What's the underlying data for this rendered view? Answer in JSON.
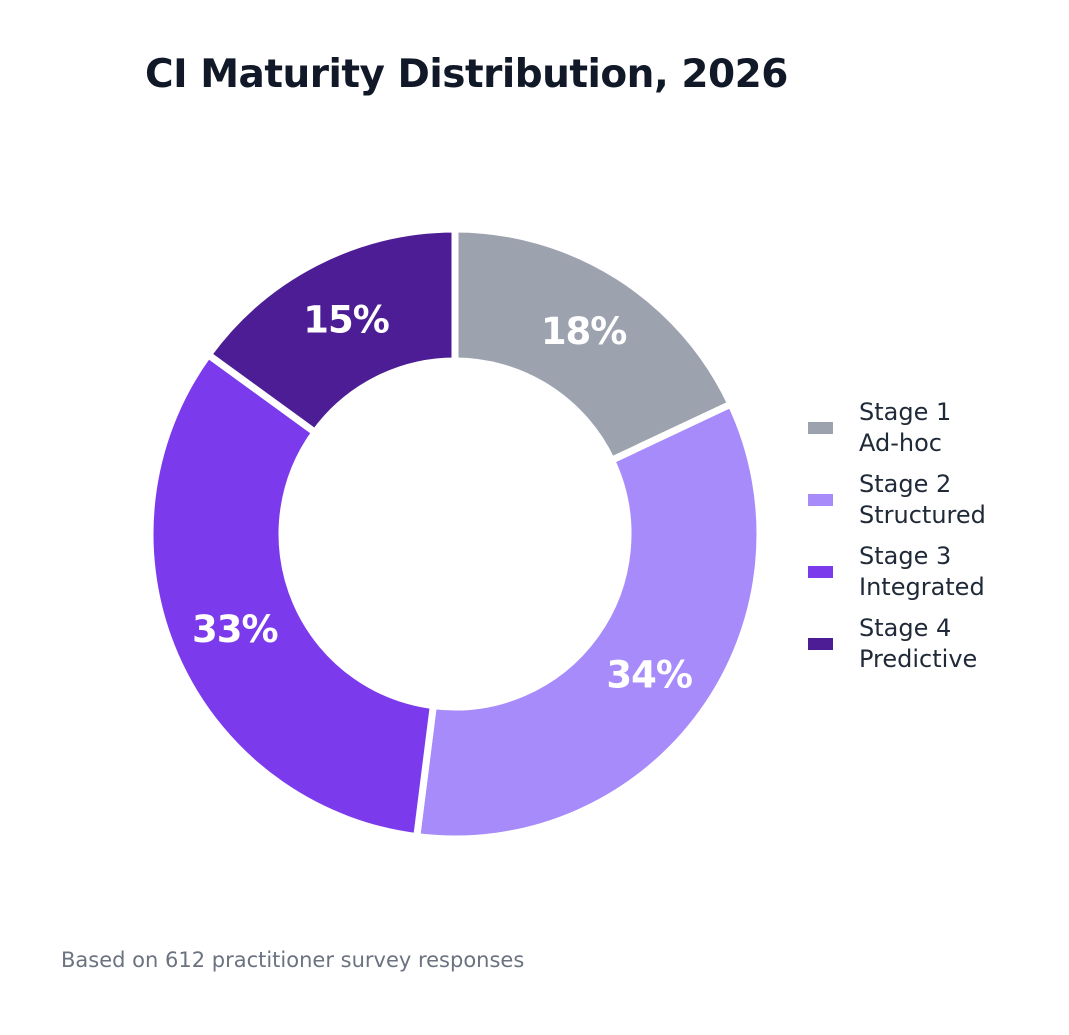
{
  "chart_data": {
    "type": "pie",
    "title": "CI Maturity Distribution, 2026",
    "slices": [
      {
        "label": "Stage 1",
        "sublabel": "Ad-hoc",
        "value": 18,
        "display": "18%",
        "color": "#9ca3af"
      },
      {
        "label": "Stage 2",
        "sublabel": "Structured",
        "value": 34,
        "display": "34%",
        "color": "#a78bfa"
      },
      {
        "label": "Stage 3",
        "sublabel": "Integrated",
        "value": 33,
        "display": "33%",
        "color": "#7c3aed"
      },
      {
        "label": "Stage 4",
        "sublabel": "Predictive",
        "value": 15,
        "display": "15%",
        "color": "#4c1d95"
      }
    ],
    "donut": true,
    "legend_position": "right",
    "footnote": "Based on 612 practitioner survey responses"
  }
}
